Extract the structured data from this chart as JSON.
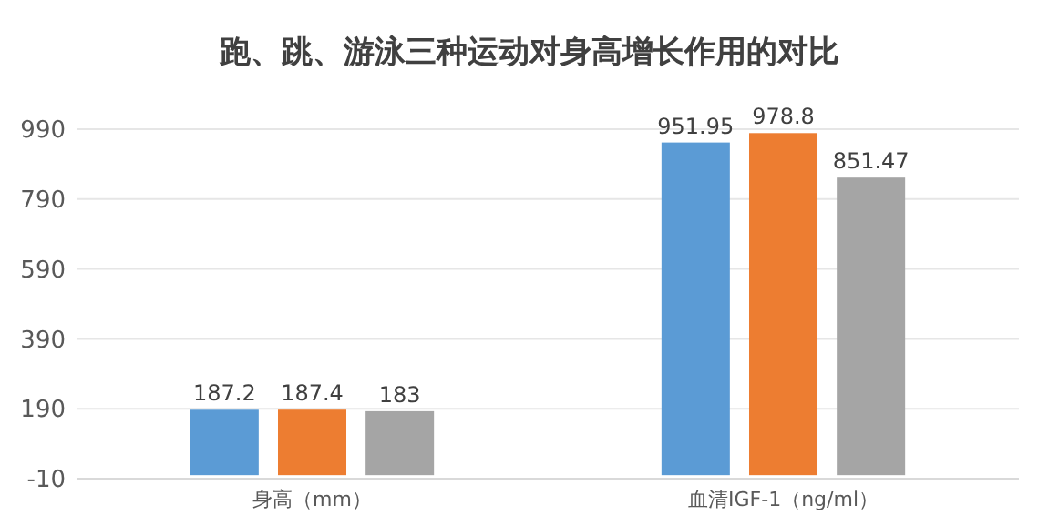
{
  "chart_data": {
    "type": "bar",
    "title": "跑、跳、游泳三种运动对身高增长作用的对比",
    "categories": [
      "身高（mm）",
      "血清IGF-1（ng/ml）"
    ],
    "series": [
      {
        "color": "#5b9bd5",
        "values": [
          187.2,
          951.95
        ]
      },
      {
        "color": "#ed7d31",
        "values": [
          187.4,
          978.8
        ]
      },
      {
        "color": "#a5a5a5",
        "values": [
          183,
          851.47
        ]
      }
    ],
    "ylim": [
      -10,
      990
    ],
    "yticks": [
      -10,
      190,
      390,
      590,
      790,
      990
    ],
    "grid": "y",
    "data_labels": true
  }
}
